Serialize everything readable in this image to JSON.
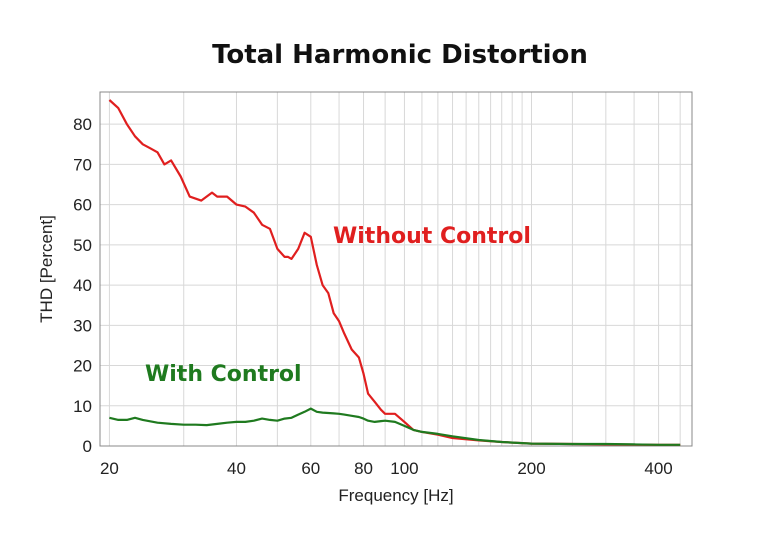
{
  "chart_data": {
    "type": "line",
    "title": "Total Harmonic Distortion",
    "xlabel": "Frequency [Hz]",
    "ylabel": "THD [Percent]",
    "x_scale": "log",
    "xlim": [
      19,
      480
    ],
    "ylim": [
      0,
      88
    ],
    "x_ticks": [
      20,
      40,
      60,
      80,
      100,
      200,
      400
    ],
    "y_ticks": [
      0,
      10,
      20,
      30,
      40,
      50,
      60,
      70,
      80
    ],
    "grid": true,
    "series": [
      {
        "name": "Without Control",
        "color": "#e01f1f",
        "x": [
          20,
          21,
          22,
          23,
          24,
          25,
          26,
          27,
          28,
          29.5,
          31,
          33,
          35,
          36,
          38,
          40,
          42,
          44,
          46,
          48,
          50,
          52,
          53,
          54,
          56,
          58,
          60,
          62,
          64,
          66,
          68,
          70,
          72,
          75,
          78,
          80,
          82,
          85,
          88,
          90,
          95,
          100,
          105,
          110,
          120,
          130,
          150,
          170,
          200,
          250,
          300,
          350,
          400,
          450
        ],
        "y": [
          86,
          84,
          80,
          77,
          75,
          74,
          73,
          70,
          71,
          67,
          62,
          61,
          63,
          62,
          62,
          60,
          59.5,
          58,
          55,
          54,
          49,
          47,
          47,
          46.5,
          49,
          53,
          52,
          45,
          40,
          38,
          33,
          31,
          28,
          24,
          22,
          18,
          13,
          11,
          9,
          8,
          8,
          6,
          4,
          3.5,
          2.8,
          2,
          1.4,
          1,
          0.6,
          0.5,
          0.4,
          0.35,
          0.3,
          0.3
        ]
      },
      {
        "name": "With Control",
        "color": "#1f7a1f",
        "x": [
          20,
          21,
          22,
          23,
          24,
          26,
          28,
          30,
          32,
          34,
          36,
          38,
          40,
          42,
          44,
          46,
          48,
          50,
          52,
          54,
          56,
          58,
          60,
          62,
          64,
          66,
          68,
          70,
          72,
          75,
          78,
          80,
          82,
          85,
          88,
          90,
          95,
          100,
          105,
          110,
          120,
          130,
          150,
          170,
          200,
          250,
          300,
          350,
          400,
          450
        ],
        "y": [
          7,
          6.5,
          6.5,
          7,
          6.5,
          5.8,
          5.5,
          5.3,
          5.3,
          5.2,
          5.5,
          5.8,
          6,
          6,
          6.3,
          6.8,
          6.5,
          6.3,
          6.8,
          7,
          7.8,
          8.5,
          9.3,
          8.5,
          8.3,
          8.2,
          8.1,
          8,
          7.8,
          7.5,
          7.2,
          6.8,
          6.3,
          6,
          6.2,
          6.3,
          6,
          5,
          4,
          3.5,
          3,
          2.4,
          1.5,
          1,
          0.6,
          0.5,
          0.5,
          0.4,
          0.3,
          0.3
        ]
      }
    ],
    "annotations": [
      {
        "text": "Without Control",
        "color": "#e01f1f"
      },
      {
        "text": "With Control",
        "color": "#1f7a1f"
      }
    ]
  }
}
